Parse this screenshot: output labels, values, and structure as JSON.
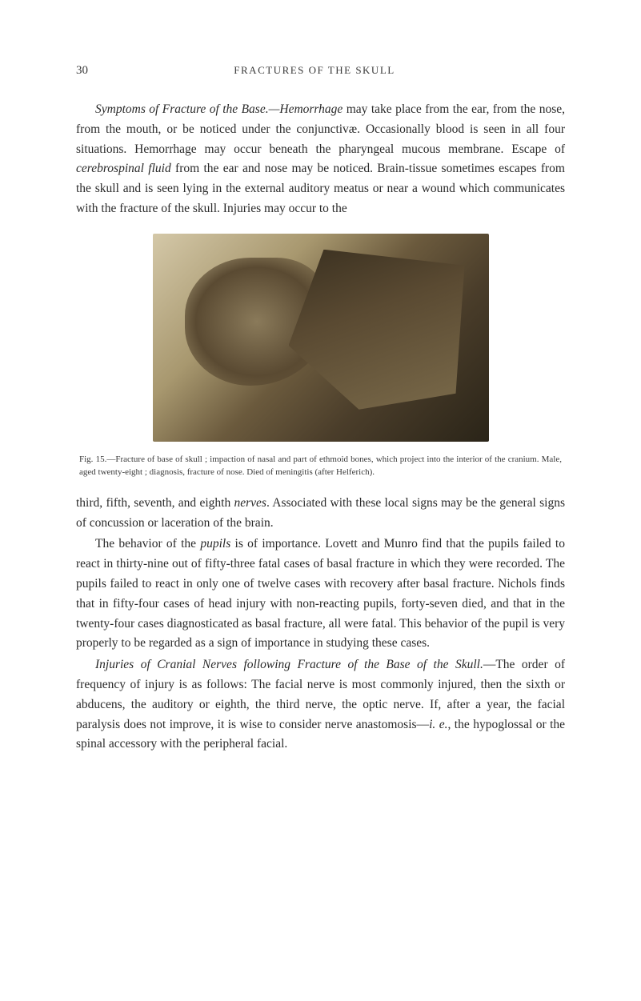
{
  "page": {
    "number": "30",
    "runningTitle": "FRACTURES OF THE SKULL"
  },
  "paragraphs": {
    "p1_a": "Symptoms of Fracture of the Base.—Hemorrhage",
    "p1_b": " may take place from the ear, from the nose, from the mouth, or be noticed under the conjunctivæ. Occasionally blood is seen in all four situations. Hemorrhage may occur beneath the pharyngeal mucous membrane. Escape of ",
    "p1_c": "cerebrospinal fluid",
    "p1_d": " from the ear and nose may be noticed. Brain-tissue sometimes escapes from the skull and is seen lying in the external auditory meatus or near a wound which communicates with the fracture of the skull. Injuries may occur to the",
    "p2_a": "third, fifth, seventh, and eighth ",
    "p2_b": "nerves",
    "p2_c": ". Associated with these local signs may be the general signs of concussion or laceration of the brain.",
    "p3_a": "The behavior of the ",
    "p3_b": "pupils",
    "p3_c": " is of importance. Lovett and Munro find that the pupils failed to react in thirty-nine out of fifty-three fatal cases of basal fracture in which they were recorded. The pupils failed to react in only one of twelve cases with recovery after basal fracture. Nichols finds that in fifty-four cases of head injury with non-reacting pupils, forty-seven died, and that in the twenty-four cases diagnosticated as basal fracture, all were fatal. This behavior of the pupil is very properly to be regarded as a sign of importance in studying these cases.",
    "p4_a": "Injuries of Cranial Nerves following Fracture of the Base of the Skull.",
    "p4_b": "—The order of frequency of injury is as follows: The facial nerve is most commonly injured, then the sixth or abducens, the auditory or eighth, the third nerve, the optic nerve. If, after a year, the facial paralysis does not improve, it is wise to consider nerve anastomosis—",
    "p4_c": "i. e.",
    "p4_d": ", the hypoglossal or the spinal accessory with the peripheral facial."
  },
  "figure": {
    "caption": "Fig. 15.—Fracture of base of skull ; impaction of nasal and part of ethmoid bones, which project into the interior of the cranium. Male, aged twenty-eight ; diagnosis, fracture of nose. Died of meningitis (after Helferich)."
  },
  "colors": {
    "background": "#ffffff",
    "text": "#2a2a2a",
    "headerText": "#3a3a3a"
  },
  "typography": {
    "bodyFontSize": 15.5,
    "captionFontSize": 11,
    "headerFontSize": 13,
    "pageNumFontSize": 15,
    "lineHeight": 1.6,
    "fontFamily": "Georgia, Times New Roman, serif"
  }
}
